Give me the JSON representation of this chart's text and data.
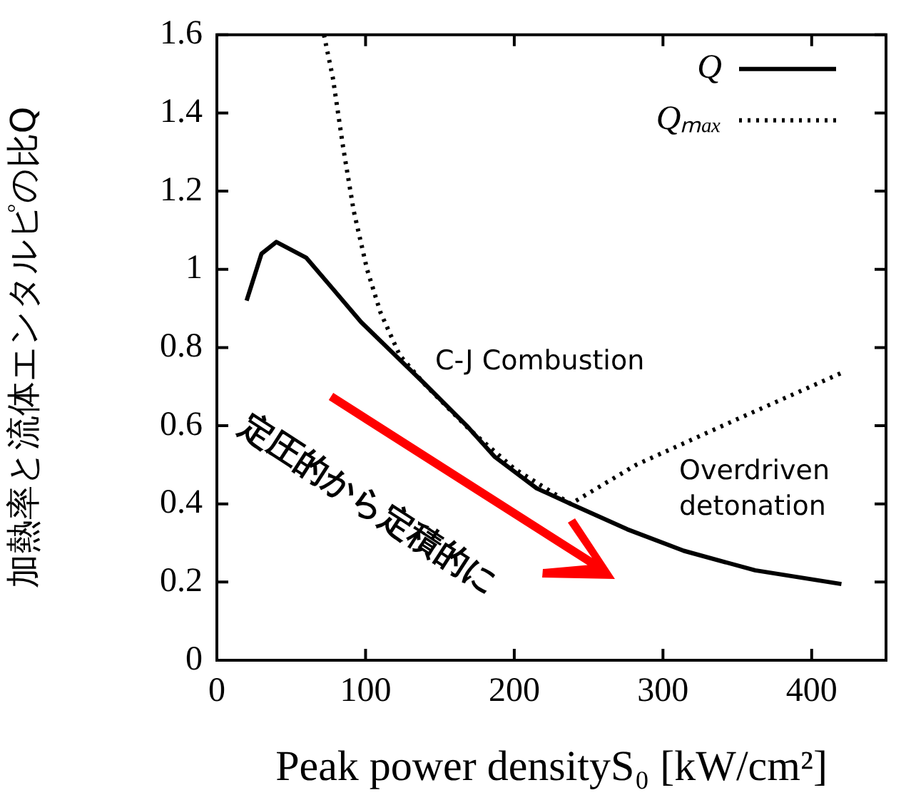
{
  "chart_data": {
    "type": "line",
    "xlabel": "Peak power densityS₀ [kW/cm²]",
    "ylabel": "加熱率と流体エンタルピの比Q",
    "xlim": [
      0,
      450
    ],
    "xticks": [
      0,
      100,
      200,
      300,
      400
    ],
    "ylim": [
      0,
      1.6
    ],
    "yticks": [
      0,
      0.2,
      0.4,
      0.6,
      0.8,
      1,
      1.2,
      1.4,
      1.6
    ],
    "grid": false,
    "legend": "top right",
    "marker": "none",
    "series": [
      {
        "name": "Q",
        "color": "#000000",
        "line_style": "solid",
        "x": [
          20,
          30,
          40,
          60,
          78,
          97,
          120,
          139,
          168,
          187,
          215,
          238,
          276,
          314,
          362,
          420
        ],
        "values": [
          0.92,
          1.04,
          1.07,
          1.03,
          0.95,
          0.865,
          0.78,
          0.71,
          0.6,
          0.52,
          0.44,
          0.4,
          0.335,
          0.28,
          0.23,
          0.195
        ]
      },
      {
        "name": "Qₘₐₓ",
        "color": "#000000",
        "line_style": "dotted",
        "x": [
          72,
          78,
          85,
          92,
          101,
          110,
          123,
          140,
          170,
          200,
          238,
          282,
          346,
          420
        ],
        "values": [
          1.6,
          1.49,
          1.31,
          1.15,
          1.0,
          0.89,
          0.78,
          0.705,
          0.59,
          0.49,
          0.4,
          0.5,
          0.61,
          0.735
        ]
      }
    ],
    "annotations": [
      "C-J Combustion",
      "Overdriven\ndetonation",
      "定圧的から定積的に"
    ]
  }
}
